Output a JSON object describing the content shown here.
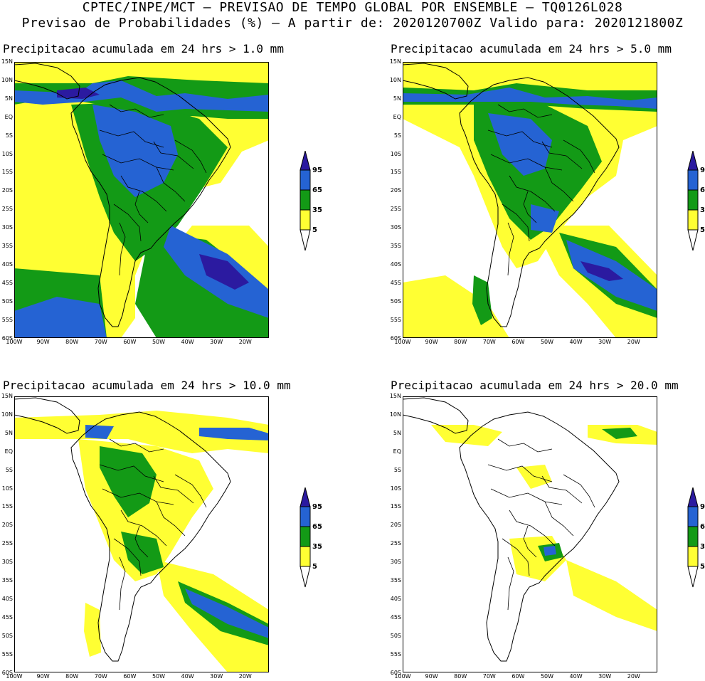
{
  "header": {
    "line1": "CPTEC/INPE/MCT – PREVISAO DE TEMPO GLOBAL POR ENSEMBLE – TQ0126L028",
    "line2": "Previsao de Probabilidades (%) –  A partir de: 2020120700Z  Valido para: 2020121800Z"
  },
  "axes": {
    "lat_labels": [
      "15N",
      "10N",
      "5N",
      "EQ",
      "5S",
      "10S",
      "15S",
      "20S",
      "25S",
      "30S",
      "35S",
      "40S",
      "45S",
      "50S",
      "55S",
      "60S"
    ],
    "lon_labels": [
      "100W",
      "90W",
      "80W",
      "70W",
      "60W",
      "50W",
      "40W",
      "30W",
      "20W"
    ]
  },
  "legend": {
    "levels": [
      "95",
      "65",
      "35",
      "5"
    ],
    "colors": {
      "p95": "#2b1aa0",
      "p65": "#2563d3",
      "p35": "#139a16",
      "p5": "#ffff33",
      "land_line": "#000000"
    }
  },
  "panels": [
    {
      "title": "Precipitacao acumulada em 24 hrs > 1.0 mm"
    },
    {
      "title": "Precipitacao acumulada em 24 hrs > 5.0 mm"
    },
    {
      "title": "Precipitacao acumulada em 24 hrs > 10.0 mm"
    },
    {
      "title": "Precipitacao acumulada em 24 hrs > 20.0 mm"
    }
  ]
}
